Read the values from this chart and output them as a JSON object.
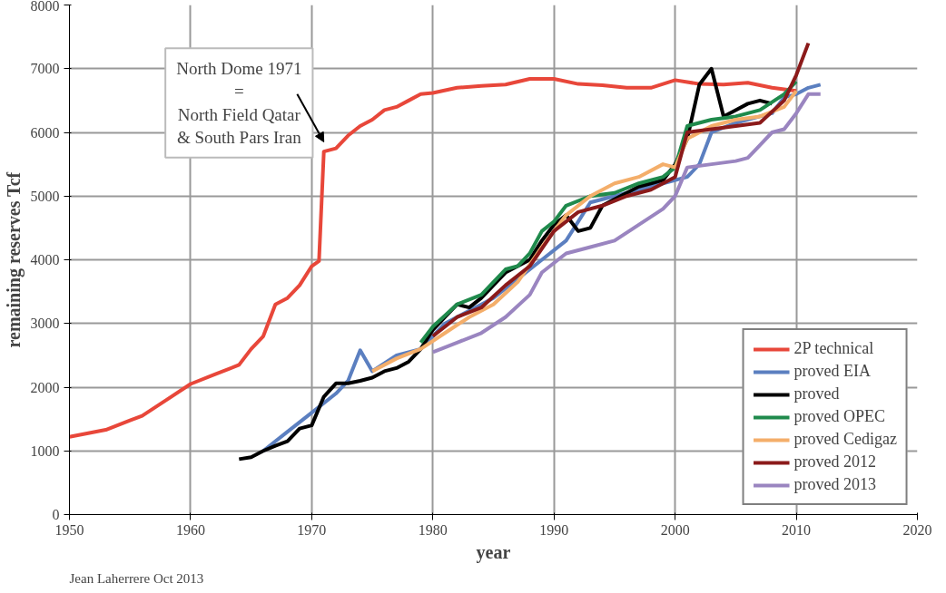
{
  "chart_data": {
    "type": "line",
    "xlabel": "year",
    "ylabel": "remaining reserves Tcf",
    "xlim": [
      1950,
      2020
    ],
    "xticks": [
      1950,
      1960,
      1970,
      1980,
      1990,
      2000,
      2010,
      2020
    ],
    "ylim": [
      0,
      8000
    ],
    "yticks": [
      0,
      1000,
      2000,
      3000,
      4000,
      5000,
      6000,
      7000,
      8000
    ],
    "grid": true,
    "legend": "bottom right",
    "line_style": "solid",
    "marker": "none",
    "annotations": [
      {
        "text": "North Dome 1971\n=\nNorth Field Qatar\n& South Pars Iran",
        "x": 1971,
        "y": 5700
      },
      "Jean Laherrere Oct 2013"
    ],
    "series": [
      {
        "name": "2P technical",
        "color": "#e8473a",
        "x": [
          1950,
          1953,
          1955,
          1956,
          1958,
          1960,
          1962,
          1964,
          1965,
          1966,
          1967,
          1968,
          1969,
          1970,
          1970.6,
          1971,
          1972,
          1973,
          1974,
          1975,
          1976,
          1977,
          1978,
          1979,
          1980,
          1982,
          1984,
          1986,
          1988,
          1990,
          1992,
          1994,
          1996,
          1998,
          2000,
          2002,
          2004,
          2006,
          2008,
          2010
        ],
        "values": [
          1220,
          1330,
          1480,
          1550,
          1800,
          2050,
          2200,
          2350,
          2600,
          2800,
          3300,
          3400,
          3600,
          3900,
          3980,
          5700,
          5750,
          5950,
          6100,
          6200,
          6350,
          6400,
          6500,
          6600,
          6620,
          6700,
          6730,
          6750,
          6840,
          6840,
          6760,
          6740,
          6700,
          6700,
          6820,
          6760,
          6750,
          6780,
          6700,
          6650
        ]
      },
      {
        "name": "proved EIA",
        "color": "#5b7fc0",
        "x": [
          1966,
          1968,
          1970,
          1972,
          1973,
          1974,
          1975,
          1977,
          1979,
          1981,
          1983,
          1985,
          1987,
          1989,
          1991,
          1992,
          1993,
          1995,
          1997,
          1999,
          2001,
          2002,
          2003,
          2005,
          2007,
          2008,
          2009,
          2010,
          2011,
          2012
        ],
        "values": [
          1000,
          1300,
          1600,
          1900,
          2100,
          2580,
          2250,
          2500,
          2600,
          3000,
          3200,
          3400,
          3700,
          4000,
          4300,
          4600,
          4900,
          5000,
          5100,
          5200,
          5300,
          5500,
          6000,
          6150,
          6250,
          6300,
          6550,
          6600,
          6700,
          6750
        ]
      },
      {
        "name": "proved",
        "color": "#000000",
        "x": [
          1964,
          1965,
          1966,
          1967,
          1968,
          1969,
          1970,
          1971,
          1972,
          1973,
          1974,
          1975,
          1976,
          1977,
          1978,
          1979,
          1980,
          1981,
          1982,
          1983,
          1984,
          1985,
          1986,
          1987,
          1988,
          1989,
          1990,
          1991,
          1992,
          1993,
          1994,
          1995,
          1996,
          1997,
          1998,
          1999,
          2000,
          2001,
          2002,
          2003,
          2004,
          2005,
          2006,
          2007,
          2008
        ],
        "values": [
          870,
          900,
          1000,
          1080,
          1150,
          1350,
          1400,
          1850,
          2060,
          2060,
          2100,
          2150,
          2250,
          2300,
          2400,
          2600,
          2900,
          3100,
          3300,
          3250,
          3400,
          3600,
          3800,
          3900,
          4000,
          4300,
          4550,
          4700,
          4450,
          4500,
          4850,
          4950,
          5050,
          5150,
          5200,
          5250,
          5500,
          5900,
          6750,
          7000,
          6250,
          6350,
          6450,
          6500,
          6450
        ]
      },
      {
        "name": "proved OPEC",
        "color": "#1f8a4c",
        "x": [
          1979,
          1980,
          1982,
          1984,
          1986,
          1987,
          1988,
          1989,
          1990,
          1991,
          1993,
          1995,
          1997,
          1999,
          2000,
          2001,
          2003,
          2005,
          2007,
          2009,
          2010
        ],
        "values": [
          2700,
          2950,
          3300,
          3450,
          3850,
          3900,
          4100,
          4450,
          4600,
          4850,
          5000,
          5050,
          5200,
          5300,
          5450,
          6100,
          6200,
          6250,
          6350,
          6600,
          6800
        ]
      },
      {
        "name": "proved Cedigaz",
        "color": "#f4ae6a",
        "x": [
          1975,
          1977,
          1979,
          1981,
          1983,
          1985,
          1987,
          1989,
          1991,
          1993,
          1995,
          1997,
          1999,
          2000,
          2001,
          2003,
          2005,
          2007,
          2009,
          2010
        ],
        "values": [
          2250,
          2450,
          2600,
          2850,
          3100,
          3300,
          3650,
          4200,
          4700,
          5000,
          5200,
          5300,
          5500,
          5450,
          5900,
          6100,
          6200,
          6250,
          6400,
          6650
        ]
      },
      {
        "name": "proved 2012",
        "color": "#8b1a1a",
        "x": [
          1980,
          1982,
          1984,
          1986,
          1988,
          1990,
          1992,
          1994,
          1996,
          1998,
          2000,
          2001,
          2003,
          2005,
          2007,
          2009,
          2010,
          2011
        ],
        "values": [
          2800,
          3100,
          3250,
          3600,
          3900,
          4450,
          4750,
          4850,
          5000,
          5100,
          5300,
          6000,
          6050,
          6100,
          6150,
          6500,
          6900,
          7400
        ]
      },
      {
        "name": "proved 2013",
        "color": "#9a85c0",
        "x": [
          1980,
          1982,
          1984,
          1986,
          1988,
          1989,
          1991,
          1993,
          1995,
          1997,
          1999,
          2000,
          2001,
          2003,
          2005,
          2006,
          2007,
          2008,
          2009,
          2010,
          2011,
          2012
        ],
        "values": [
          2550,
          2700,
          2850,
          3100,
          3450,
          3800,
          4100,
          4200,
          4300,
          4550,
          4800,
          5000,
          5450,
          5500,
          5550,
          5600,
          5800,
          6000,
          6050,
          6300,
          6600,
          6600
        ]
      }
    ]
  }
}
